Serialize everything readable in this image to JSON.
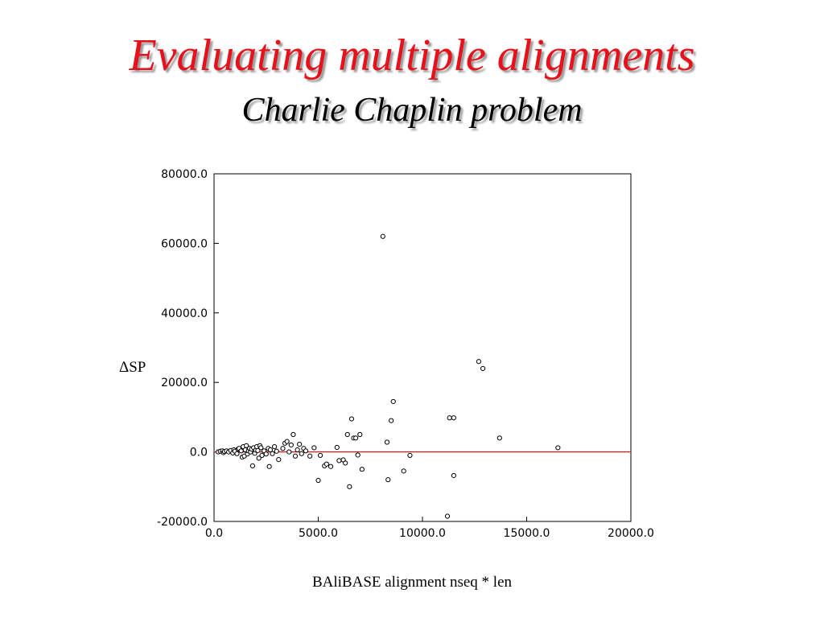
{
  "slide": {
    "title": "Evaluating multiple alignments",
    "subtitle": "Charlie Chaplin problem"
  },
  "colors": {
    "title": "#e8101a",
    "zero_line": "#e8101a",
    "points": "#000000"
  },
  "chart_data": {
    "type": "scatter",
    "xlabel": "BAliBASE alignment nseq * len",
    "ylabel": "ΔSP",
    "xlim": [
      0,
      20000
    ],
    "ylim": [
      -20000,
      80000
    ],
    "xticks": [
      0,
      5000,
      10000,
      15000,
      20000
    ],
    "xtick_labels": [
      "0.0",
      "5000.0",
      "10000.0",
      "15000.0",
      "20000.0"
    ],
    "yticks": [
      80000,
      60000,
      40000,
      20000,
      0,
      -20000
    ],
    "ytick_labels": [
      "80000.0",
      "60000.0",
      "40000.0",
      "20000.0",
      "0.0",
      "-20000.0"
    ],
    "grid": false,
    "reference_line": {
      "y": 0
    },
    "points": [
      [
        200,
        0
      ],
      [
        300,
        200
      ],
      [
        400,
        300
      ],
      [
        450,
        -200
      ],
      [
        500,
        100
      ],
      [
        600,
        300
      ],
      [
        700,
        0
      ],
      [
        800,
        400
      ],
      [
        900,
        -300
      ],
      [
        950,
        600
      ],
      [
        1000,
        200
      ],
      [
        1100,
        -500
      ],
      [
        1150,
        800
      ],
      [
        1200,
        1000
      ],
      [
        1300,
        300
      ],
      [
        1350,
        -1500
      ],
      [
        1400,
        1500
      ],
      [
        1450,
        -1200
      ],
      [
        1500,
        600
      ],
      [
        1550,
        1800
      ],
      [
        1600,
        -600
      ],
      [
        1650,
        300
      ],
      [
        1700,
        1000
      ],
      [
        1750,
        0
      ],
      [
        1800,
        800
      ],
      [
        1850,
        -4000
      ],
      [
        1900,
        1200
      ],
      [
        1950,
        -400
      ],
      [
        2000,
        500
      ],
      [
        2050,
        1500
      ],
      [
        2100,
        400
      ],
      [
        2150,
        -1800
      ],
      [
        2200,
        1800
      ],
      [
        2250,
        1200
      ],
      [
        2300,
        -1000
      ],
      [
        2400,
        300
      ],
      [
        2500,
        -600
      ],
      [
        2600,
        1000
      ],
      [
        2650,
        -4200
      ],
      [
        2700,
        600
      ],
      [
        2800,
        -500
      ],
      [
        2900,
        1500
      ],
      [
        3000,
        200
      ],
      [
        3100,
        -2200
      ],
      [
        3300,
        1000
      ],
      [
        3400,
        2500
      ],
      [
        3500,
        3000
      ],
      [
        3600,
        0
      ],
      [
        3700,
        2000
      ],
      [
        3800,
        5000
      ],
      [
        3900,
        -1200
      ],
      [
        4000,
        600
      ],
      [
        4100,
        2200
      ],
      [
        4200,
        -500
      ],
      [
        4300,
        1000
      ],
      [
        4400,
        300
      ],
      [
        4600,
        -1200
      ],
      [
        4800,
        1200
      ],
      [
        5000,
        -8200
      ],
      [
        5100,
        -1000
      ],
      [
        5300,
        -4000
      ],
      [
        5400,
        -3500
      ],
      [
        5600,
        -4200
      ],
      [
        5900,
        1300
      ],
      [
        6000,
        -2500
      ],
      [
        6200,
        -2300
      ],
      [
        6300,
        -3200
      ],
      [
        6400,
        5000
      ],
      [
        6500,
        -10000
      ],
      [
        6600,
        9500
      ],
      [
        6700,
        4000
      ],
      [
        6800,
        4000
      ],
      [
        6900,
        -900
      ],
      [
        7000,
        5000
      ],
      [
        7100,
        -5000
      ],
      [
        8100,
        62000
      ],
      [
        8300,
        2800
      ],
      [
        8350,
        -8000
      ],
      [
        8500,
        9000
      ],
      [
        8600,
        14500
      ],
      [
        9100,
        -5500
      ],
      [
        9400,
        -1000
      ],
      [
        11200,
        -18500
      ],
      [
        11300,
        9800
      ],
      [
        11500,
        9800
      ],
      [
        11500,
        -6800
      ],
      [
        12700,
        26000
      ],
      [
        12900,
        24000
      ],
      [
        13700,
        4000
      ],
      [
        16500,
        1200
      ]
    ]
  }
}
